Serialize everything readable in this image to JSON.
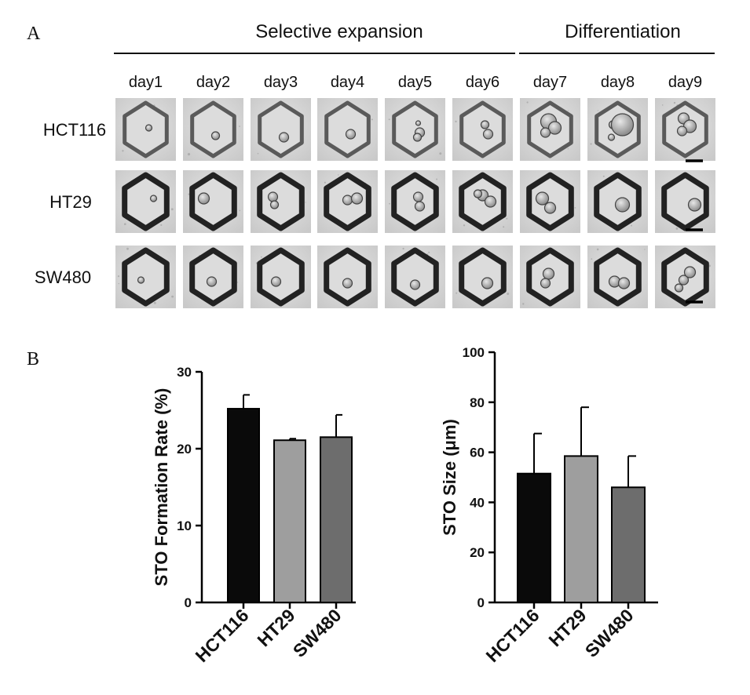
{
  "panel_a": {
    "letter": "A",
    "header_expansion": "Selective expansion",
    "header_differentiation": "Differentiation",
    "days": [
      "day1",
      "day2",
      "day3",
      "day4",
      "day5",
      "day6",
      "day7",
      "day8",
      "day9"
    ],
    "cell_lines": [
      "HCT116",
      "HT29",
      "SW480"
    ]
  },
  "panel_b": {
    "letter": "B"
  },
  "chart_data": [
    {
      "type": "bar",
      "title": "",
      "categories": [
        "HCT116",
        "HT29",
        "SW480"
      ],
      "values": [
        25.2,
        21.1,
        21.5
      ],
      "errors": [
        1.8,
        0.2,
        2.9
      ],
      "bar_colors": [
        "#0a0a0a",
        "#9e9e9e",
        "#6d6d6d"
      ],
      "xlabel": "",
      "ylabel": "STO Formation Rate (%)",
      "ylim": [
        0,
        30
      ],
      "yticks": [
        0,
        10,
        20,
        30
      ],
      "grid": false
    },
    {
      "type": "bar",
      "title": "",
      "categories": [
        "HCT116",
        "HT29",
        "SW480"
      ],
      "values": [
        51.5,
        58.5,
        46
      ],
      "errors": [
        16,
        19.5,
        12.5
      ],
      "bar_colors": [
        "#0a0a0a",
        "#9e9e9e",
        "#6d6d6d"
      ],
      "xlabel": "",
      "ylabel": "STO Size (μm)",
      "ylim": [
        0,
        100
      ],
      "yticks": [
        0,
        20,
        40,
        60,
        80,
        100
      ],
      "grid": false
    }
  ]
}
